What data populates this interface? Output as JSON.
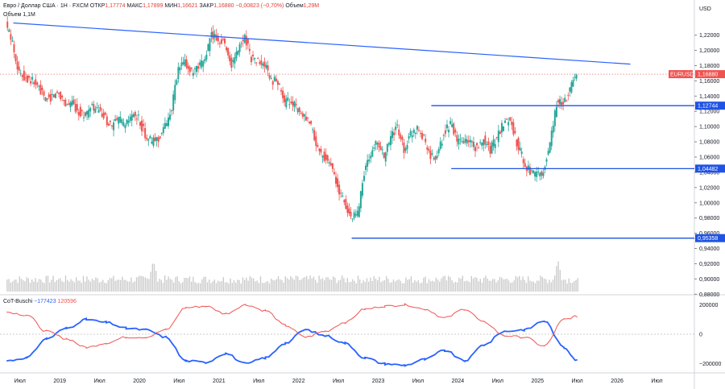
{
  "header": {
    "symbol_line": "Евро / Доллар США · 1Н · FXCM",
    "open_label": "ОТКР",
    "open": "1,17774",
    "high_label": "МАКС",
    "high": "1,17899",
    "low_label": "МИН",
    "low": "1,16621",
    "close_label": "ЗАКР",
    "close": "1,16880",
    "change": "−0,00823 (−0,70%)",
    "vol_label": "Объем",
    "vol": "1,29M",
    "volume_line_label": "Объем",
    "volume_line_value": "1,1M",
    "currency": "USD"
  },
  "indicator": {
    "name": "CoT-Buschi",
    "v1": "−177423",
    "v2": "120596"
  },
  "colors": {
    "up": "#26a69a",
    "down": "#ef5350",
    "trend": "#2962ff",
    "level": "#1e53e5",
    "price_badge": "#ef5350",
    "cot_red": "#ef5350",
    "cot_blue": "#2962ff",
    "volume": "#c8c8c8"
  },
  "chart_data": [
    {
      "type": "line",
      "title": "",
      "price_axis_ticks": [
        "1,22000",
        "1,20000",
        "1,18000",
        "1,16000",
        "1,14000",
        "1,12000",
        "1,10000",
        "1,08000",
        "1,06000",
        "1,04000",
        "1,02000",
        "1,00000",
        "0,98000",
        "0,96000",
        "0,94000",
        "0,92000",
        "0,90000",
        "0,88000"
      ],
      "time_axis_ticks": [
        "Июл",
        "2019",
        "Июл",
        "2020",
        "Июл",
        "2021",
        "Июл",
        "2022",
        "Июл",
        "2023",
        "Июл",
        "2024",
        "Июл",
        "2025",
        "Июл",
        "2026",
        "Июл"
      ],
      "ylim": [
        0.875,
        1.245
      ],
      "last_price": {
        "label": "EURUSD",
        "value": "1,16880",
        "y": 1.1688
      },
      "levels": [
        {
          "value": 1.12744,
          "label": "1,12744",
          "x_start": "2023-09"
        },
        {
          "value": 1.04482,
          "label": "1,04482",
          "x_start": "2023-12"
        },
        {
          "value": 0.95358,
          "label": "0,95358",
          "x_start": "2022-09"
        }
      ],
      "trendline": {
        "from": {
          "x": "2018-06",
          "y": 1.236
        },
        "to": {
          "x": "2026-03",
          "y": 1.182
        }
      },
      "series": [
        {
          "x": [
            "2018-05",
            "2018-06",
            "2018-07",
            "2018-08",
            "2018-09",
            "2018-10",
            "2018-11",
            "2018-12",
            "2019-01",
            "2019-02",
            "2019-03",
            "2019-04",
            "2019-05",
            "2019-06",
            "2019-07",
            "2019-08",
            "2019-09",
            "2019-10",
            "2019-11",
            "2019-12",
            "2020-01",
            "2020-02",
            "2020-03",
            "2020-04",
            "2020-05",
            "2020-06",
            "2020-07",
            "2020-08",
            "2020-09",
            "2020-10",
            "2020-11",
            "2020-12",
            "2021-01",
            "2021-02",
            "2021-03",
            "2021-04",
            "2021-05",
            "2021-06",
            "2021-07",
            "2021-08",
            "2021-09",
            "2021-10",
            "2021-11",
            "2021-12",
            "2022-01",
            "2022-02",
            "2022-03",
            "2022-04",
            "2022-05",
            "2022-06",
            "2022-07",
            "2022-08",
            "2022-09",
            "2022-10",
            "2022-11",
            "2022-12",
            "2023-01",
            "2023-02",
            "2023-03",
            "2023-04",
            "2023-05",
            "2023-06",
            "2023-07",
            "2023-08",
            "2023-09",
            "2023-10",
            "2023-11",
            "2023-12",
            "2024-01",
            "2024-02",
            "2024-03",
            "2024-04",
            "2024-05",
            "2024-06",
            "2024-07",
            "2024-08",
            "2024-09",
            "2024-10",
            "2024-11",
            "2024-12",
            "2025-01",
            "2025-02",
            "2025-03",
            "2025-04",
            "2025-05",
            "2025-06",
            "2025-07"
          ],
          "y": [
            1.235,
            1.21,
            1.17,
            1.165,
            1.16,
            1.15,
            1.135,
            1.14,
            1.145,
            1.13,
            1.13,
            1.12,
            1.115,
            1.125,
            1.12,
            1.11,
            1.1,
            1.11,
            1.1,
            1.115,
            1.11,
            1.09,
            1.08,
            1.085,
            1.1,
            1.125,
            1.175,
            1.185,
            1.17,
            1.175,
            1.19,
            1.22,
            1.215,
            1.21,
            1.18,
            1.2,
            1.22,
            1.19,
            1.185,
            1.18,
            1.16,
            1.16,
            1.13,
            1.135,
            1.12,
            1.11,
            1.1,
            1.07,
            1.06,
            1.05,
            1.02,
            1.0,
            0.98,
            0.985,
            1.04,
            1.065,
            1.08,
            1.06,
            1.085,
            1.1,
            1.07,
            1.09,
            1.1,
            1.085,
            1.06,
            1.06,
            1.09,
            1.105,
            1.08,
            1.08,
            1.08,
            1.07,
            1.085,
            1.07,
            1.085,
            1.105,
            1.11,
            1.08,
            1.055,
            1.04,
            1.035,
            1.04,
            1.08,
            1.13,
            1.13,
            1.15,
            1.172
          ]
        },
        {
          "name": "Объем",
          "type": "bar",
          "note": "relative volume histogram, baseline 0",
          "peak_x": [
            "2020-03",
            "2025-04"
          ]
        }
      ]
    },
    {
      "type": "line",
      "title": "CoT-Buschi",
      "y_ticks": [
        "200000",
        "0",
        "−200000"
      ],
      "ylim": [
        -240000,
        240000
      ],
      "series": [
        {
          "x": [
            "2018-05",
            "2018-08",
            "2018-11",
            "2019-02",
            "2019-05",
            "2019-08",
            "2019-11",
            "2020-02",
            "2020-05",
            "2020-08",
            "2020-11",
            "2021-02",
            "2021-05",
            "2021-08",
            "2021-11",
            "2022-02",
            "2022-05",
            "2022-08",
            "2022-11",
            "2023-02",
            "2023-05",
            "2023-08",
            "2023-11",
            "2024-02",
            "2024-05",
            "2024-08",
            "2024-11",
            "2025-02",
            "2025-05",
            "2025-07"
          ],
          "y": [
            -180000,
            -160000,
            -30000,
            40000,
            100000,
            80000,
            40000,
            30000,
            -20000,
            -180000,
            -190000,
            -130000,
            -200000,
            -160000,
            -60000,
            30000,
            -10000,
            -60000,
            -160000,
            -200000,
            -210000,
            -170000,
            -110000,
            -180000,
            -70000,
            20000,
            30000,
            90000,
            -90000,
            -177423
          ]
        },
        {
          "x": [
            "2018-05",
            "2018-08",
            "2018-11",
            "2019-02",
            "2019-05",
            "2019-08",
            "2019-11",
            "2020-02",
            "2020-05",
            "2020-08",
            "2020-11",
            "2021-02",
            "2021-05",
            "2021-08",
            "2021-11",
            "2022-02",
            "2022-05",
            "2022-08",
            "2022-11",
            "2023-02",
            "2023-05",
            "2023-08",
            "2023-11",
            "2024-02",
            "2024-05",
            "2024-08",
            "2024-11",
            "2025-02",
            "2025-05",
            "2025-07"
          ],
          "y": [
            150000,
            130000,
            20000,
            -30000,
            -90000,
            -60000,
            -20000,
            -20000,
            30000,
            180000,
            190000,
            140000,
            200000,
            160000,
            60000,
            -20000,
            20000,
            80000,
            170000,
            190000,
            200000,
            170000,
            110000,
            170000,
            80000,
            -10000,
            -20000,
            -80000,
            100000,
            120596
          ]
        }
      ]
    }
  ]
}
